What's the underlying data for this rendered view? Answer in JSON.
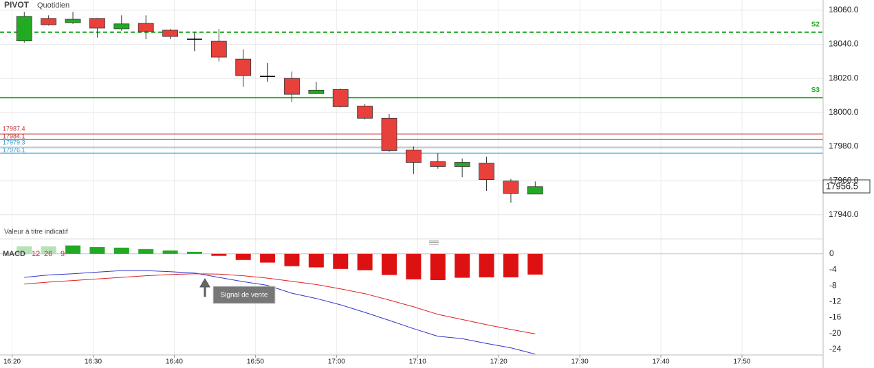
{
  "chart_data": [
    {
      "type": "candlestick",
      "title": "PIVOT",
      "subtitle": "Quotidien",
      "note": "Valeur à titre indicatif",
      "x": [
        "16:20",
        "16:23",
        "16:26",
        "16:29",
        "16:32",
        "16:35",
        "16:38",
        "16:41",
        "16:44",
        "16:47",
        "16:50",
        "16:53",
        "16:56",
        "16:59",
        "17:02",
        "17:05",
        "17:08",
        "17:11",
        "17:14",
        "17:17",
        "17:20",
        "17:23"
      ],
      "open": [
        18042,
        18055.2,
        18052.7,
        18055.2,
        18049.1,
        18052.3,
        18048.3,
        18043,
        18041.8,
        18031.3,
        18021.2,
        18020,
        18011.1,
        18013.5,
        18003.8,
        17996.6,
        17978,
        17971.1,
        17968.3,
        17970.3,
        17959.8,
        17952.1
      ],
      "high": [
        18059,
        18057,
        18059,
        18055.5,
        18057,
        18057,
        18049,
        18047,
        18049,
        18037,
        18029,
        18024,
        18018,
        18014,
        18005,
        17999,
        17980,
        17976,
        17973,
        17974,
        17961,
        17959.5
      ],
      "low": [
        18041,
        18051,
        18052,
        18044,
        18048,
        18043,
        18043,
        18036,
        18030,
        18015,
        18018,
        18006,
        18011,
        18003,
        17996,
        17977,
        17964,
        17967,
        17962,
        17954,
        17947,
        17952
      ],
      "close": [
        18056.4,
        18051.5,
        18054.7,
        18049.5,
        18052,
        18047.5,
        18044.6,
        18043,
        18032.5,
        18021.6,
        18021.2,
        18010.7,
        18013.1,
        18003.4,
        17996.6,
        17977.6,
        17970.7,
        17968.3,
        17970.7,
        17960.6,
        17952.5,
        17956.5
      ],
      "up_color": "#22aa22",
      "down_color": "#e8403a",
      "flat_color": "#000000",
      "xlim": [
        "16:18",
        "18:00"
      ],
      "ylim": [
        17927,
        18066
      ],
      "yticks": [
        {
          "value": 17940,
          "label": "17940.0"
        },
        {
          "value": 17960,
          "label": "17960.0"
        },
        {
          "value": 17980,
          "label": "17980.0"
        },
        {
          "value": 18000,
          "label": "18000.0"
        },
        {
          "value": 18020,
          "label": "18020.0"
        },
        {
          "value": 18040,
          "label": "18040.0"
        },
        {
          "value": 18060,
          "label": "18060.0"
        }
      ],
      "grid": true,
      "levels": [
        {
          "label": "S2",
          "value": 18047.1,
          "color": "#22aa22",
          "style": "dashed"
        },
        {
          "label": "S3",
          "value": 18008.7,
          "color": "#22aa22",
          "style": "solid"
        }
      ],
      "price_lines": [
        {
          "value": 17987.4,
          "color": "#c03030"
        },
        {
          "value": 17984.1,
          "color": "#c03030"
        },
        {
          "value": 17979.3,
          "color": "#3399cc"
        },
        {
          "value": 17976.1,
          "color": "#3399cc"
        }
      ],
      "last": 17956.5
    },
    {
      "type": "macd",
      "title": "MACD",
      "params": [
        12,
        26,
        9
      ],
      "annotation": "Signal de vente",
      "x": [
        "16:20",
        "16:23",
        "16:26",
        "16:29",
        "16:32",
        "16:35",
        "16:38",
        "16:41",
        "16:44",
        "16:47",
        "16:50",
        "16:53",
        "16:56",
        "16:59",
        "17:02",
        "17:05",
        "17:08",
        "17:11",
        "17:14",
        "17:17",
        "17:20",
        "17:23"
      ],
      "histogram": {
        "values": [
          1.9,
          1.9,
          2.1,
          1.7,
          1.55,
          1.2,
          0.86,
          0.5,
          -0.5,
          -1.55,
          -2.2,
          -3.1,
          -3.4,
          -3.8,
          -4.1,
          -5.3,
          -6.4,
          -6.6,
          -6.0,
          -5.9,
          -5.9,
          -5.2
        ],
        "colors": [
          "#b5e3b5",
          "#b5e3b5",
          "#22aa22",
          "#22aa22",
          "#22aa22",
          "#22aa22",
          "#22aa22",
          "#22aa22",
          "#dd1111",
          "#dd1111",
          "#dd1111",
          "#dd1111",
          "#dd1111",
          "#dd1111",
          "#dd1111",
          "#dd1111",
          "#dd1111",
          "#dd1111",
          "#dd1111",
          "#dd1111",
          "#dd1111",
          "#dd1111"
        ]
      },
      "macd_line": {
        "color": "#3333cc",
        "values": [
          -5.9,
          -5.3,
          -5.0,
          -4.6,
          -4.2,
          -4.2,
          -4.5,
          -4.8,
          -5.9,
          -7.0,
          -7.9,
          -9.9,
          -11.2,
          -12.8,
          -14.7,
          -16.7,
          -18.8,
          -20.7,
          -21.3,
          -22.5,
          -23.6,
          -25.2
        ]
      },
      "signal_line": {
        "color": "#dd2222",
        "values": [
          -7.6,
          -7.1,
          -6.7,
          -6.3,
          -5.9,
          -5.5,
          -5.2,
          -5.0,
          -5.1,
          -5.5,
          -6.1,
          -6.9,
          -7.7,
          -8.8,
          -10.0,
          -11.6,
          -13.3,
          -15.2,
          -16.5,
          -17.8,
          -19.0,
          -20.1
        ]
      },
      "xlim": [
        "16:18",
        "18:00"
      ],
      "xticks": [
        "16:20",
        "16:30",
        "16:40",
        "16:50",
        "17:00",
        "17:10",
        "17:20",
        "17:30",
        "17:40",
        "17:50"
      ],
      "ylim": [
        -25.4,
        2.2
      ],
      "yticks": [
        0,
        -4,
        -8,
        -12,
        -16,
        -20,
        -24
      ],
      "grid": true
    }
  ]
}
